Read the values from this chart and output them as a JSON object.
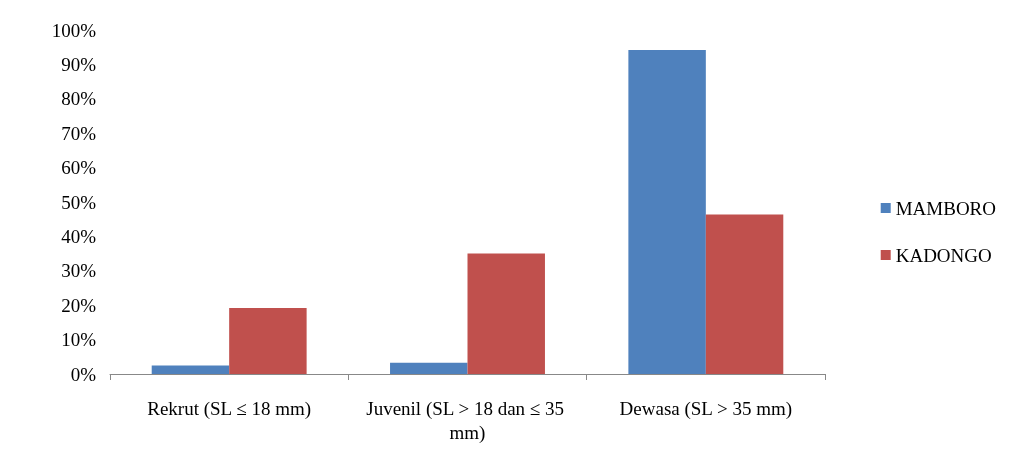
{
  "chart_data": {
    "type": "bar",
    "categories": [
      "Rekrut (SL ≤ 18 mm)",
      "Juvenil (SL > 18 dan ≤ 35 mm)",
      "Dewasa (SL > 35 mm)"
    ],
    "series": [
      {
        "name": "MAMBORO",
        "color": "#4f81bd",
        "values": [
          2.5,
          3.3,
          94.2
        ]
      },
      {
        "name": "KADONGO",
        "color": "#c0504d",
        "values": [
          19.2,
          35,
          46.4
        ]
      }
    ],
    "ylim": [
      0,
      100
    ],
    "yticks": [
      {
        "value": 0,
        "label": "0%"
      },
      {
        "value": 10,
        "label": "10%"
      },
      {
        "value": 20,
        "label": "20%"
      },
      {
        "value": 30,
        "label": "30%"
      },
      {
        "value": 40,
        "label": "40%"
      },
      {
        "value": 50,
        "label": "50%"
      },
      {
        "value": 60,
        "label": "60%"
      },
      {
        "value": 70,
        "label": "70%"
      },
      {
        "value": 80,
        "label": "80%"
      },
      {
        "value": 90,
        "label": "90%"
      },
      {
        "value": 100,
        "label": "100%"
      }
    ],
    "grid": false,
    "legend": "right"
  }
}
